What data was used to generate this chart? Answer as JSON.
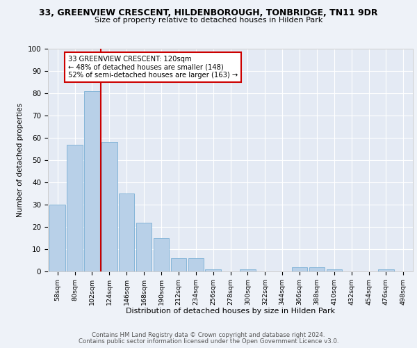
{
  "title1": "33, GREENVIEW CRESCENT, HILDENBOROUGH, TONBRIDGE, TN11 9DR",
  "title2": "Size of property relative to detached houses in Hilden Park",
  "xlabel": "Distribution of detached houses by size in Hilden Park",
  "ylabel": "Number of detached properties",
  "categories": [
    "58sqm",
    "80sqm",
    "102sqm",
    "124sqm",
    "146sqm",
    "168sqm",
    "190sqm",
    "212sqm",
    "234sqm",
    "256sqm",
    "278sqm",
    "300sqm",
    "322sqm",
    "344sqm",
    "366sqm",
    "388sqm",
    "410sqm",
    "432sqm",
    "454sqm",
    "476sqm",
    "498sqm"
  ],
  "values": [
    30,
    57,
    81,
    58,
    35,
    22,
    15,
    6,
    6,
    1,
    0,
    1,
    0,
    0,
    2,
    2,
    1,
    0,
    0,
    1,
    0
  ],
  "bar_color": "#b8d0e8",
  "bar_edge_color": "#7aafd4",
  "vline_x_index": 2.5,
  "annotation_text": "33 GREENVIEW CRESCENT: 120sqm\n← 48% of detached houses are smaller (148)\n52% of semi-detached houses are larger (163) →",
  "annotation_box_color": "#ffffff",
  "annotation_box_edge_color": "#cc0000",
  "vline_color": "#cc0000",
  "footer1": "Contains HM Land Registry data © Crown copyright and database right 2024.",
  "footer2": "Contains public sector information licensed under the Open Government Licence v3.0.",
  "ylim": [
    0,
    100
  ],
  "bg_color": "#eef2f8",
  "plot_bg_color": "#e4eaf4"
}
